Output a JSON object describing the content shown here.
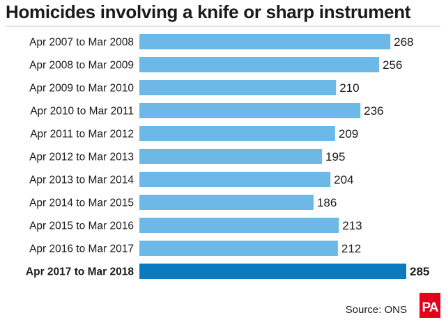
{
  "header": {
    "title": "Homicides involving a knife or sharp instrument"
  },
  "footer": {
    "source": "Source: ONS",
    "logo_text": "PA"
  },
  "colors": {
    "bar": "#6cb8e6",
    "bar_highlight": "#0a7bc0"
  },
  "chart_data": {
    "type": "bar",
    "orientation": "horizontal",
    "title": "Homicides involving a knife or sharp instrument",
    "categories": [
      "Apr 2007 to Mar 2008",
      "Apr 2008 to Mar 2009",
      "Apr 2009 to Mar 2010",
      "Apr 2010 to Mar 2011",
      "Apr 2011 to Mar 2012",
      "Apr 2012 to Mar 2013",
      "Apr 2013 to Mar 2014",
      "Apr 2014 to Mar 2015",
      "Apr 2015 to Mar 2016",
      "Apr 2016 to Mar 2017",
      "Apr 2017 to Mar 2018"
    ],
    "values": [
      268,
      256,
      210,
      236,
      209,
      195,
      204,
      186,
      213,
      212,
      285
    ],
    "highlight_index": 10,
    "xlim": [
      0,
      285
    ],
    "grid": false,
    "data_labels": true
  }
}
